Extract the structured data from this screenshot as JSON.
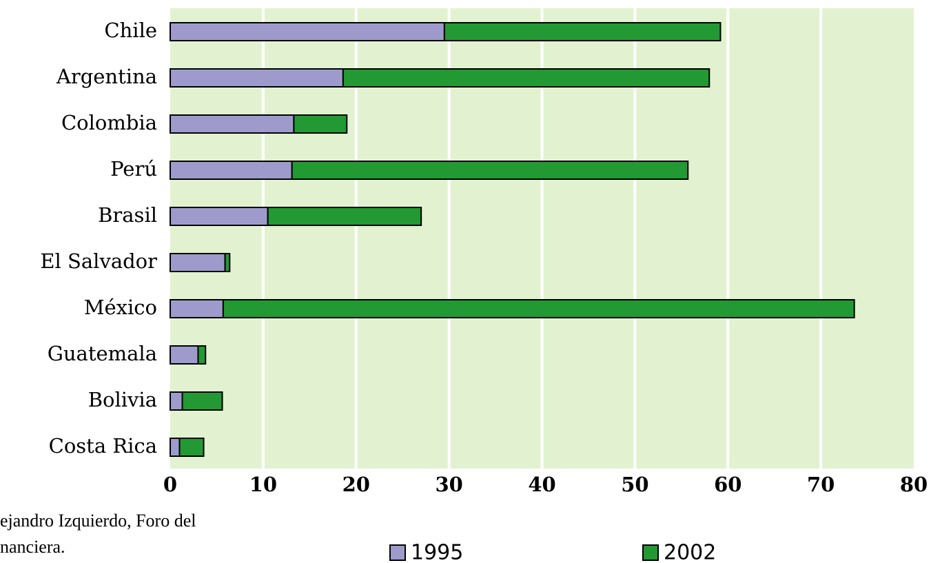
{
  "chart_data": {
    "type": "stacked_barh",
    "categories": [
      "Chile",
      "Argentina",
      "Colombia",
      "Perú",
      "Brasil",
      "El Salvador",
      "México",
      "Guatemala",
      "Bolivia",
      "Costa Rica"
    ],
    "series": [
      {
        "name": "1995",
        "color": "#9e9bcc",
        "values": [
          29.5,
          18.6,
          13.3,
          13.1,
          10.5,
          5.9,
          5.7,
          3.0,
          1.3,
          1.0
        ]
      },
      {
        "name": "2002",
        "color": "#229933",
        "values": [
          29.7,
          39.4,
          5.7,
          42.6,
          16.5,
          0.5,
          67.9,
          0.8,
          4.3,
          2.6
        ]
      }
    ],
    "xlim": [
      0,
      80
    ],
    "xticks": [
      0,
      10,
      20,
      30,
      40,
      50,
      60,
      70,
      80
    ],
    "grid": true,
    "plot_background": "#e2f2d0",
    "source": [
      "ejandro Izquierdo, Foro del",
      "nanciera."
    ]
  }
}
